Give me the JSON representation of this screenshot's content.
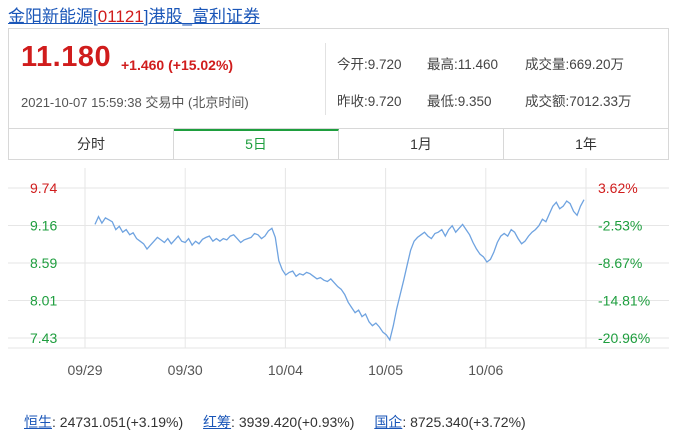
{
  "header": {
    "stock_name": "金阳新能源",
    "code_open": "[",
    "code": "01121",
    "code_close": "]",
    "market": "港股_富利证券"
  },
  "quote": {
    "price": "11.180",
    "change": "+1.460 (+15.02%)",
    "datetime": "2021-10-07 15:59:38",
    "trading_status": "交易中",
    "timezone": "(北京时间)",
    "open": "今开:9.720",
    "high": "最高:11.460",
    "volume": "成交量:669.20万",
    "prev_close": "昨收:9.720",
    "low": "最低:9.350",
    "turnover": "成交额:7012.33万"
  },
  "tabs": [
    {
      "label": "分时",
      "active": false
    },
    {
      "label": "5日",
      "active": true
    },
    {
      "label": "1月",
      "active": false
    },
    {
      "label": "1年",
      "active": false
    }
  ],
  "chart_data": {
    "type": "line",
    "y_left_ticks": [
      "9.74",
      "9.16",
      "8.59",
      "8.01",
      "7.43"
    ],
    "y_right_ticks": [
      "3.62%",
      "-2.53%",
      "-8.67%",
      "-14.81%",
      "-20.96%"
    ],
    "ylim": [
      7.43,
      9.74
    ],
    "x_labels": [
      "09/29",
      "09/30",
      "10/04",
      "10/05",
      "10/06"
    ],
    "grid": true,
    "line_color": "#6fa3e0",
    "up_color": "#d01c1c",
    "down_color": "#1e9e3e",
    "values": [
      9.18,
      9.3,
      9.2,
      9.28,
      9.25,
      9.22,
      9.1,
      9.15,
      9.06,
      9.1,
      9.02,
      9.05,
      8.96,
      8.92,
      8.88,
      8.8,
      8.86,
      8.92,
      8.98,
      8.94,
      8.9,
      8.96,
      8.88,
      8.94,
      9.0,
      8.92,
      8.9,
      8.96,
      8.86,
      8.92,
      8.88,
      8.95,
      8.98,
      9.0,
      8.92,
      8.96,
      8.92,
      8.96,
      8.94,
      9.0,
      9.02,
      8.96,
      8.9,
      8.94,
      8.96,
      8.98,
      9.04,
      9.02,
      8.96,
      9.0,
      9.08,
      9.12,
      8.98,
      8.62,
      8.48,
      8.4,
      8.44,
      8.46,
      8.38,
      8.42,
      8.4,
      8.44,
      8.42,
      8.38,
      8.34,
      8.36,
      8.32,
      8.3,
      8.34,
      8.28,
      8.22,
      8.18,
      8.1,
      7.98,
      7.9,
      7.82,
      7.86,
      7.76,
      7.8,
      7.68,
      7.62,
      7.66,
      7.6,
      7.52,
      7.48,
      7.4,
      7.62,
      7.88,
      8.1,
      8.32,
      8.55,
      8.78,
      8.92,
      8.98,
      9.02,
      9.06,
      9.0,
      8.96,
      9.04,
      9.06,
      9.1,
      9.0,
      9.1,
      9.16,
      9.06,
      9.12,
      9.18,
      9.1,
      9.02,
      8.9,
      8.8,
      8.72,
      8.68,
      8.6,
      8.64,
      8.75,
      8.9,
      9.0,
      9.04,
      9.0,
      9.1,
      9.06,
      8.96,
      8.88,
      8.92,
      9.0,
      9.06,
      9.1,
      9.16,
      9.26,
      9.22,
      9.34,
      9.46,
      9.52,
      9.42,
      9.46,
      9.54,
      9.5,
      9.38,
      9.32,
      9.46,
      9.56
    ]
  },
  "indices": [
    {
      "name": "恒生",
      "value": ": 24731.051(+3.19%)"
    },
    {
      "name": "红筹",
      "value": ": 3939.420(+0.93%)"
    },
    {
      "name": "国企",
      "value": ": 8725.340(+3.72%)"
    }
  ]
}
